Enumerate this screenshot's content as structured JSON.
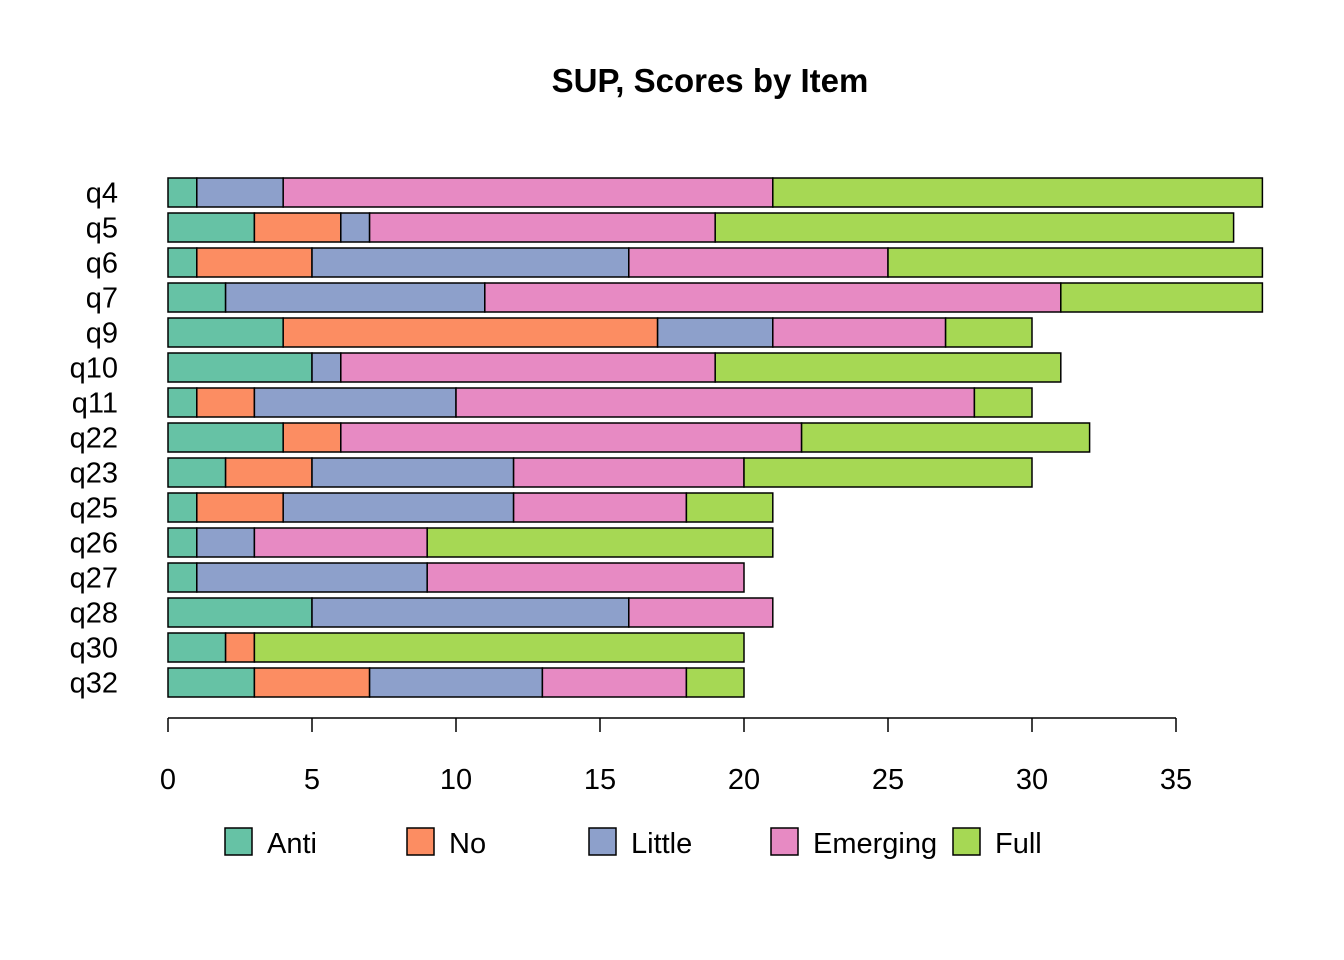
{
  "chart_data": {
    "type": "bar",
    "orientation": "horizontal",
    "stacked": true,
    "title": "SUP, Scores by Item",
    "xlabel": "",
    "ylabel": "",
    "xlim": [
      0,
      38
    ],
    "xticks": [
      0,
      5,
      10,
      15,
      20,
      25,
      30,
      35
    ],
    "grid": false,
    "legend_position": "bottom",
    "categories": [
      "q4",
      "q5",
      "q6",
      "q7",
      "q9",
      "q10",
      "q11",
      "q22",
      "q23",
      "q25",
      "q26",
      "q27",
      "q28",
      "q30",
      "q32"
    ],
    "series": [
      {
        "name": "Anti",
        "color": "#66c2a5",
        "values": [
          1,
          3,
          1,
          2,
          4,
          5,
          1,
          4,
          2,
          1,
          1,
          1,
          5,
          2,
          3
        ]
      },
      {
        "name": "No",
        "color": "#fc8d62",
        "values": [
          0,
          3,
          4,
          0,
          13,
          0,
          2,
          2,
          3,
          3,
          0,
          0,
          0,
          1,
          4
        ]
      },
      {
        "name": "Little",
        "color": "#8da0cb",
        "values": [
          3,
          1,
          11,
          9,
          4,
          1,
          7,
          0,
          7,
          8,
          2,
          8,
          11,
          0,
          6
        ]
      },
      {
        "name": "Emerging",
        "color": "#e78ac3",
        "values": [
          17,
          12,
          9,
          20,
          6,
          13,
          18,
          16,
          8,
          6,
          6,
          11,
          5,
          0,
          5
        ]
      },
      {
        "name": "Full",
        "color": "#a6d854",
        "values": [
          17,
          18,
          13,
          7,
          3,
          12,
          2,
          10,
          10,
          3,
          12,
          0,
          0,
          17,
          2
        ]
      }
    ]
  }
}
